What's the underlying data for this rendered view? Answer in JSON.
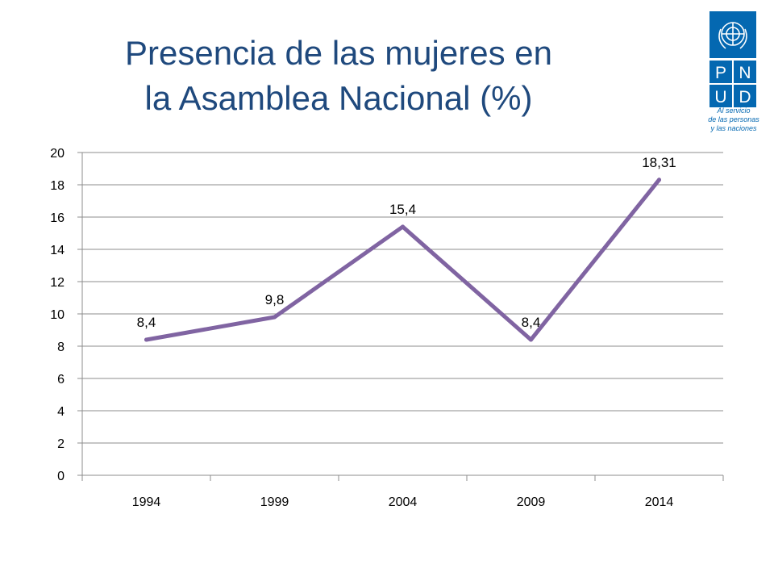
{
  "slide": {
    "title_line1": "Presencia de las mujeres en",
    "title_line2": "la Asamblea Nacional (%)"
  },
  "logo": {
    "letters": [
      "P",
      "N",
      "U",
      "D"
    ],
    "tagline": [
      "Al servicio",
      "de las personas",
      "y las naciones"
    ],
    "brand_color": "#0468B1",
    "icon": "un-emblem-icon"
  },
  "chart_data": {
    "type": "line",
    "categories": [
      "1994",
      "1999",
      "2004",
      "2009",
      "2014"
    ],
    "series": [
      {
        "values": [
          8.4,
          9.8,
          15.4,
          8.4,
          18.31
        ],
        "data_labels": [
          "8,4",
          "9,8",
          "15,4",
          "8,4",
          "18,31"
        ],
        "color": "#8064A2"
      }
    ],
    "ylim": [
      0,
      20
    ],
    "yticks": [
      0,
      2,
      4,
      6,
      8,
      10,
      12,
      14,
      16,
      18,
      20
    ],
    "ytick_labels": [
      "0",
      "2",
      "4",
      "6",
      "8",
      "10",
      "12",
      "14",
      "16",
      "18",
      "20"
    ],
    "grid": true,
    "legend": false
  }
}
